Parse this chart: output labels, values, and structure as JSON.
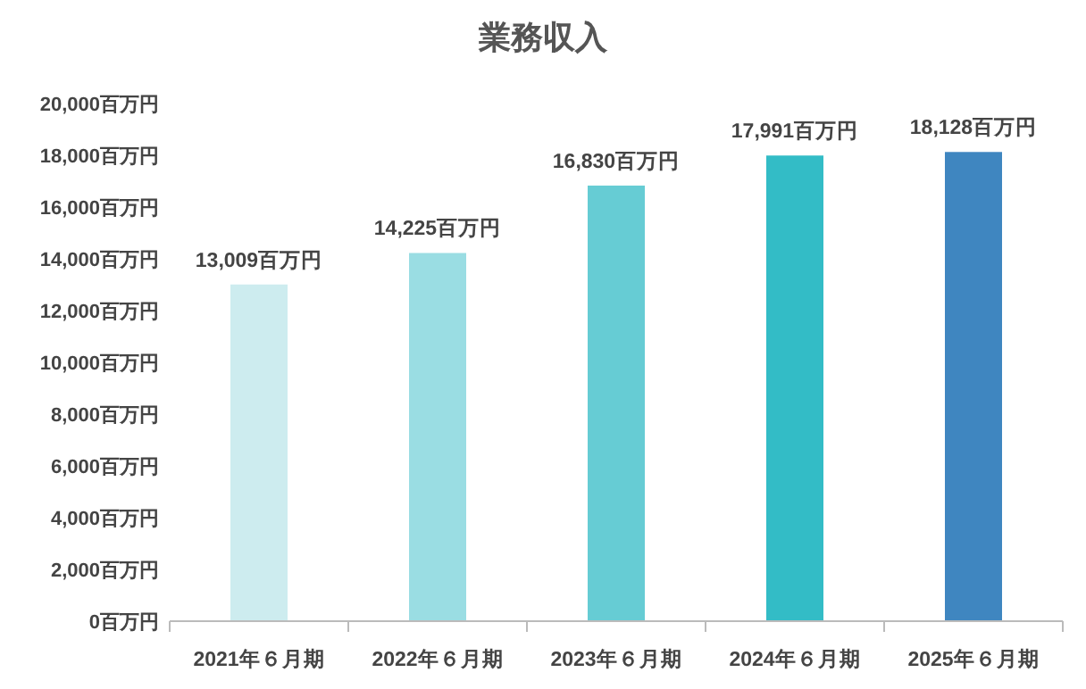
{
  "chart_data": {
    "type": "bar",
    "title": "業務収入",
    "categories": [
      "2021年６月期",
      "2022年６月期",
      "2023年６月期",
      "2024年６月期",
      "2025年６月期"
    ],
    "values": [
      13009,
      14225,
      16830,
      17991,
      18128
    ],
    "value_labels": [
      "13,009百万円",
      "14,225百万円",
      "16,830百万円",
      "17,991百万円",
      "18,128百万円"
    ],
    "colors": [
      "#cdecef",
      "#9adde3",
      "#66ccd4",
      "#33bcc6",
      "#3f86c0"
    ],
    "ylim": [
      0,
      20000
    ],
    "yticks": [
      {
        "value": 0,
        "label": "0百万円"
      },
      {
        "value": 2000,
        "label": "2,000百万円"
      },
      {
        "value": 4000,
        "label": "4,000百万円"
      },
      {
        "value": 6000,
        "label": "6,000百万円"
      },
      {
        "value": 8000,
        "label": "8,000百万円"
      },
      {
        "value": 10000,
        "label": "10,000百万円"
      },
      {
        "value": 12000,
        "label": "12,000百万円"
      },
      {
        "value": 14000,
        "label": "14,000百万円"
      },
      {
        "value": 16000,
        "label": "16,000百万円"
      },
      {
        "value": 18000,
        "label": "18,000百万円"
      },
      {
        "value": 20000,
        "label": "20,000百万円"
      }
    ],
    "grid": false
  }
}
